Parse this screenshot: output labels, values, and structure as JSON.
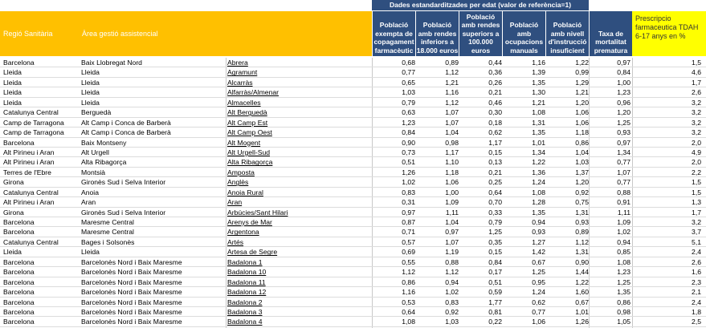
{
  "header": {
    "group_title": "Dades estandarditzades per edat (valor de referència=1)",
    "col_region": "Regió Sanitària",
    "col_area": "Àrea gestió assistencial",
    "col_abs": "",
    "col_v1": "Població exempta de copagament farmacèutic",
    "col_v2": "Població amb rendes inferiors a 18.000 euros",
    "col_v3": "Població amb rendes superiors a 100.000 euros",
    "col_v4": "Població amb ocupacions manuals",
    "col_v5": "Població amb nivell d'instrucció insuficient",
    "col_v6": "Taxa de mortalitat prematura",
    "col_v7": "Prescripcio farmaceutica TDAH 6-17 anys en %"
  },
  "rows": [
    {
      "region": "Barcelona",
      "area": "Baix Llobregat Nord",
      "abs": "Abrera",
      "v1": "0,68",
      "v2": "0,89",
      "v3": "0,44",
      "v4": "1,16",
      "v5": "1,22",
      "v6": "0,97",
      "v7": "1,5"
    },
    {
      "region": "Lleida",
      "area": "Lleida",
      "abs": "Agramunt",
      "v1": "0,77",
      "v2": "1,12",
      "v3": "0,36",
      "v4": "1,39",
      "v5": "0,99",
      "v6": "0,84",
      "v7": "4,6"
    },
    {
      "region": "Lleida",
      "area": "Lleida",
      "abs": "Alcarràs",
      "v1": "0,65",
      "v2": "1,21",
      "v3": "0,26",
      "v4": "1,35",
      "v5": "1,29",
      "v6": "1,00",
      "v7": "1,7"
    },
    {
      "region": "Lleida",
      "area": "Lleida",
      "abs": "Alfarràs/Almenar",
      "v1": "1,03",
      "v2": "1,16",
      "v3": "0,21",
      "v4": "1,30",
      "v5": "1,21",
      "v6": "1,23",
      "v7": "2,6"
    },
    {
      "region": "Lleida",
      "area": "Lleida",
      "abs": "Almacelles",
      "v1": "0,79",
      "v2": "1,12",
      "v3": "0,46",
      "v4": "1,21",
      "v5": "1,20",
      "v6": "0,96",
      "v7": "3,2"
    },
    {
      "region": "Catalunya Central",
      "area": "Berguedà",
      "abs": "Alt Berguedà",
      "v1": "0,63",
      "v2": "1,07",
      "v3": "0,30",
      "v4": "1,08",
      "v5": "1,06",
      "v6": "1,20",
      "v7": "3,2"
    },
    {
      "region": "Camp de Tarragona",
      "area": "Alt Camp i Conca de Barberà",
      "abs": "Alt Camp Est",
      "v1": "1,23",
      "v2": "1,07",
      "v3": "0,18",
      "v4": "1,31",
      "v5": "1,06",
      "v6": "1,25",
      "v7": "3,2"
    },
    {
      "region": "Camp de Tarragona",
      "area": "Alt Camp i Conca de Barberà",
      "abs": "Alt Camp Oest",
      "v1": "0,84",
      "v2": "1,04",
      "v3": "0,62",
      "v4": "1,35",
      "v5": "1,18",
      "v6": "0,93",
      "v7": "3,2"
    },
    {
      "region": "Barcelona",
      "area": "Baix Montseny",
      "abs": "Alt Mogent",
      "v1": "0,90",
      "v2": "0,98",
      "v3": "1,17",
      "v4": "1,01",
      "v5": "0,86",
      "v6": "0,97",
      "v7": "2,0"
    },
    {
      "region": "Alt Pirineu i Aran",
      "area": "Alt Urgell",
      "abs": "Alt Urgell-Sud",
      "v1": "0,73",
      "v2": "1,17",
      "v3": "0,15",
      "v4": "1,34",
      "v5": "1,04",
      "v6": "1,34",
      "v7": "4,9"
    },
    {
      "region": "Alt Pirineu i Aran",
      "area": "Alta Ribagorça",
      "abs": "Alta Ribagorça",
      "v1": "0,51",
      "v2": "1,10",
      "v3": "0,13",
      "v4": "1,22",
      "v5": "1,03",
      "v6": "0,77",
      "v7": "2,0"
    },
    {
      "region": "Terres de l'Ebre",
      "area": "Montsià",
      "abs": "Amposta",
      "v1": "1,26",
      "v2": "1,18",
      "v3": "0,21",
      "v4": "1,36",
      "v5": "1,37",
      "v6": "1,07",
      "v7": "2,2"
    },
    {
      "region": "Girona",
      "area": "Gironès Sud i Selva Interior",
      "abs": "Anglès",
      "v1": "1,02",
      "v2": "1,06",
      "v3": "0,25",
      "v4": "1,24",
      "v5": "1,20",
      "v6": "0,77",
      "v7": "1,5"
    },
    {
      "region": "Catalunya Central",
      "area": "Anoia",
      "abs": "Anoia Rural",
      "v1": "0,83",
      "v2": "1,00",
      "v3": "0,64",
      "v4": "1,08",
      "v5": "0,92",
      "v6": "0,88",
      "v7": "1,5"
    },
    {
      "region": "Alt Pirineu i Aran",
      "area": "Aran",
      "abs": "Aran",
      "v1": "0,31",
      "v2": "1,09",
      "v3": "0,70",
      "v4": "1,28",
      "v5": "0,75",
      "v6": "0,91",
      "v7": "1,3"
    },
    {
      "region": "Girona",
      "area": "Gironès Sud i Selva Interior",
      "abs": "Arbúcies/Sant Hilari",
      "v1": "0,97",
      "v2": "1,11",
      "v3": "0,33",
      "v4": "1,35",
      "v5": "1,31",
      "v6": "1,11",
      "v7": "1,7"
    },
    {
      "region": "Barcelona",
      "area": "Maresme Central",
      "abs": "Arenys de Mar",
      "v1": "0,87",
      "v2": "1,04",
      "v3": "0,79",
      "v4": "0,94",
      "v5": "0,93",
      "v6": "1,09",
      "v7": "3,2"
    },
    {
      "region": "Barcelona",
      "area": "Maresme Central",
      "abs": "Argentona",
      "v1": "0,71",
      "v2": "0,97",
      "v3": "1,25",
      "v4": "0,93",
      "v5": "0,89",
      "v6": "1,02",
      "v7": "3,7"
    },
    {
      "region": "Catalunya Central",
      "area": "Bages i Solsonès",
      "abs": "Artés",
      "v1": "0,57",
      "v2": "1,07",
      "v3": "0,35",
      "v4": "1,27",
      "v5": "1,12",
      "v6": "0,94",
      "v7": "5,1"
    },
    {
      "region": "Lleida",
      "area": "Lleida",
      "abs": "Artesa de Segre",
      "v1": "0,69",
      "v2": "1,19",
      "v3": "0,15",
      "v4": "1,42",
      "v5": "1,31",
      "v6": "0,85",
      "v7": "2,4"
    },
    {
      "region": "Barcelona",
      "area": "Barcelonès Nord i Baix Maresme",
      "abs": "Badalona 1",
      "v1": "0,55",
      "v2": "0,88",
      "v3": "0,84",
      "v4": "0,67",
      "v5": "0,90",
      "v6": "1,08",
      "v7": "2,6"
    },
    {
      "region": "Barcelona",
      "area": "Barcelonès Nord i Baix Maresme",
      "abs": "Badalona 10",
      "v1": "1,12",
      "v2": "1,12",
      "v3": "0,17",
      "v4": "1,25",
      "v5": "1,44",
      "v6": "1,23",
      "v7": "1,6"
    },
    {
      "region": "Barcelona",
      "area": "Barcelonès Nord i Baix Maresme",
      "abs": "Badalona 11",
      "v1": "0,86",
      "v2": "0,94",
      "v3": "0,51",
      "v4": "0,95",
      "v5": "1,22",
      "v6": "1,25",
      "v7": "2,3"
    },
    {
      "region": "Barcelona",
      "area": "Barcelonès Nord i Baix Maresme",
      "abs": "Badalona 12",
      "v1": "1,16",
      "v2": "1,02",
      "v3": "0,59",
      "v4": "1,24",
      "v5": "1,60",
      "v6": "1,35",
      "v7": "2,1"
    },
    {
      "region": "Barcelona",
      "area": "Barcelonès Nord i Baix Maresme",
      "abs": "Badalona 2",
      "v1": "0,53",
      "v2": "0,83",
      "v3": "1,77",
      "v4": "0,62",
      "v5": "0,67",
      "v6": "0,86",
      "v7": "2,4"
    },
    {
      "region": "Barcelona",
      "area": "Barcelonès Nord i Baix Maresme",
      "abs": "Badalona 3",
      "v1": "0,64",
      "v2": "0,92",
      "v3": "0,81",
      "v4": "0,77",
      "v5": "1,01",
      "v6": "0,98",
      "v7": "1,8"
    },
    {
      "region": "Barcelona",
      "area": "Barcelonès Nord i Baix Maresme",
      "abs": "Badalona 4",
      "v1": "1,08",
      "v2": "1,03",
      "v3": "0,22",
      "v4": "1,06",
      "v5": "1,26",
      "v6": "1,05",
      "v7": "2,5"
    }
  ]
}
